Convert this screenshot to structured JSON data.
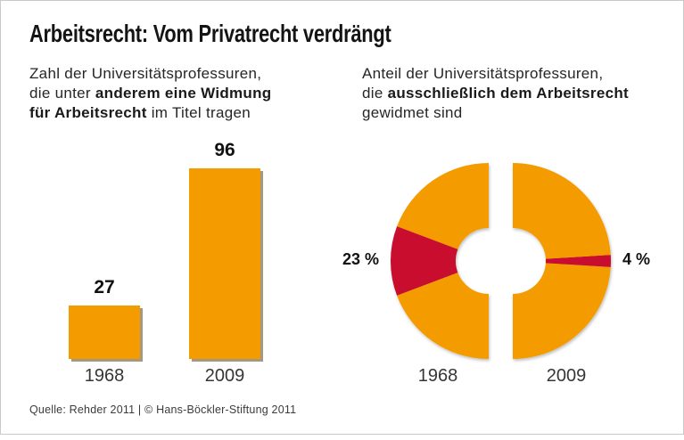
{
  "header": {
    "title": "Arbeitsrecht: Vom Privatrecht verdrängt"
  },
  "subtitle_left": {
    "line1": "Zahl der Universitätsprofessuren,",
    "line2_normal": "die unter ",
    "line2_bold": "anderem eine Widmung",
    "line3_bold": "für Arbeitsrecht",
    "line3_normal": " im Titel tragen"
  },
  "subtitle_right": {
    "line1": "Anteil der Universitätsprofessuren,",
    "line2_normal": "die ",
    "line2_bold": "ausschließlich dem Arbeitsrecht",
    "line3_normal": "gewidmet sind"
  },
  "footer": {
    "source": "Quelle: Rehder 2011 | © Hans-Böckler-Stiftung 2011"
  },
  "colors": {
    "orange": "#F49B00",
    "red": "#C8102E",
    "text": "#141414"
  },
  "chart_data": [
    {
      "type": "bar",
      "title": "Zahl der Universitätsprofessuren, die unter anderem eine Widmung für Arbeitsrecht im Titel tragen",
      "categories": [
        "1968",
        "2009"
      ],
      "values": [
        27,
        96
      ],
      "value_labels": [
        "27",
        "96"
      ],
      "bar_color": "#F49B00",
      "ylim": [
        0,
        96
      ],
      "grid": "off",
      "legend": "none"
    },
    {
      "type": "donut",
      "title": "Anteil der Universitätsprofessuren, die ausschließlich dem Arbeitsrecht gewidmet sind",
      "categories": [
        "1968",
        "2009"
      ],
      "values_pct": [
        23,
        4
      ],
      "pct_labels": [
        "23 %",
        "4 %"
      ],
      "highlight_color": "#C8102E",
      "rest_color": "#F49B00",
      "layout": "two half-donuts facing each other, highlight wedge points outward at horizontal axis"
    }
  ]
}
